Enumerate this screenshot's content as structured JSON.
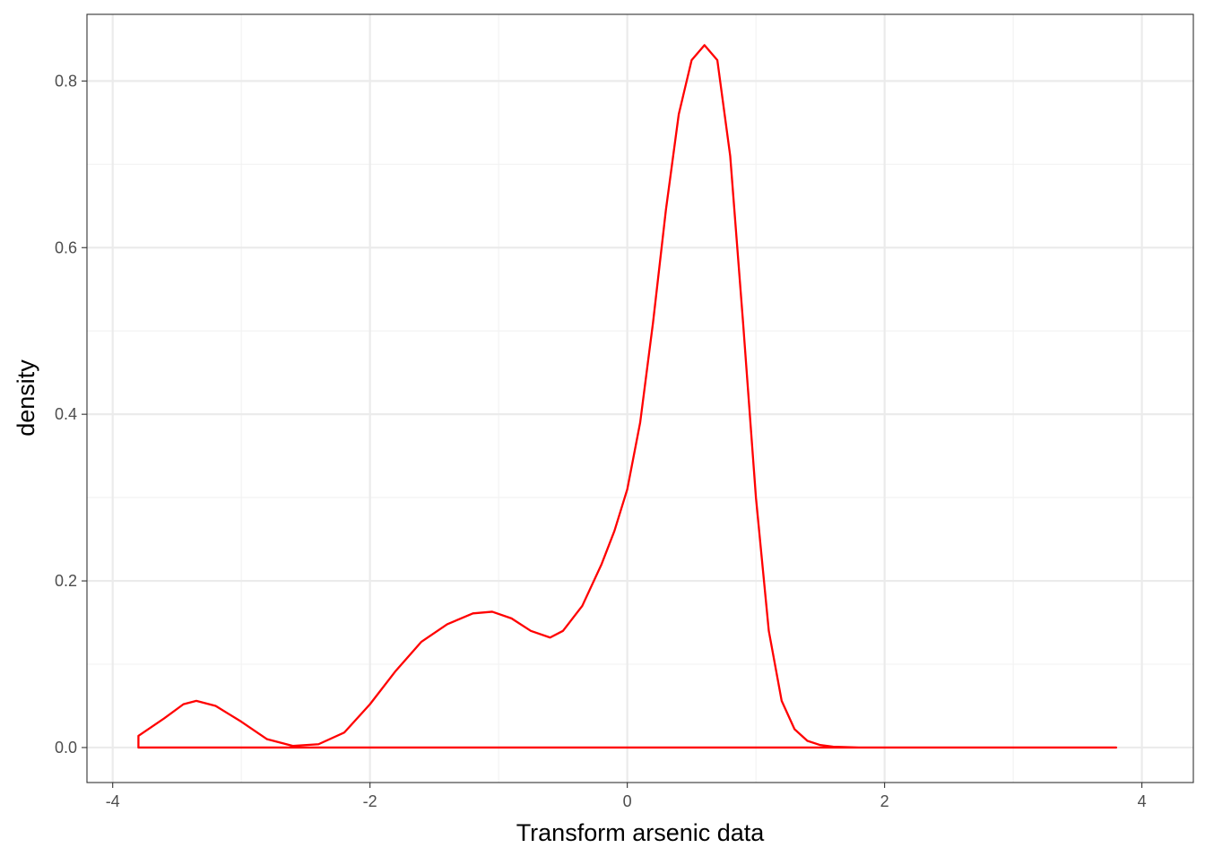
{
  "chart_data": {
    "type": "area",
    "title": "",
    "xlabel": "Transform arsenic data",
    "ylabel": "density",
    "xlim": [
      -4.2,
      4.4
    ],
    "ylim": [
      -0.042,
      0.88
    ],
    "x_ticks": [
      -4,
      -2,
      0,
      2,
      4
    ],
    "x_tick_labels": [
      "-4",
      "-2",
      "0",
      "2",
      "4"
    ],
    "y_ticks": [
      0.0,
      0.2,
      0.4,
      0.6,
      0.8
    ],
    "y_tick_labels": [
      "0.0",
      "0.2",
      "0.4",
      "0.6",
      "0.8"
    ],
    "x_minor_ticks": [
      -3,
      -1,
      1,
      3
    ],
    "y_minor_ticks": [
      0.1,
      0.3,
      0.5,
      0.7
    ],
    "grid": true,
    "theme": "bw",
    "legend": "none",
    "series": [
      {
        "line_color": "#ff0000",
        "fill": "none",
        "x": [
          -3.8,
          -3.6,
          -3.45,
          -3.35,
          -3.2,
          -3.0,
          -2.8,
          -2.6,
          -2.4,
          -2.2,
          -2.0,
          -1.8,
          -1.6,
          -1.4,
          -1.2,
          -1.05,
          -0.9,
          -0.75,
          -0.6,
          -0.5,
          -0.35,
          -0.2,
          -0.1,
          0.0,
          0.1,
          0.2,
          0.3,
          0.4,
          0.5,
          0.6,
          0.7,
          0.8,
          0.9,
          1.0,
          1.1,
          1.2,
          1.3,
          1.4,
          1.5,
          1.6,
          1.8,
          2.0,
          2.5,
          3.0,
          3.5,
          3.8
        ],
        "y": [
          0.014,
          0.035,
          0.052,
          0.056,
          0.05,
          0.031,
          0.01,
          0.002,
          0.004,
          0.018,
          0.052,
          0.092,
          0.127,
          0.148,
          0.161,
          0.163,
          0.155,
          0.14,
          0.132,
          0.14,
          0.17,
          0.22,
          0.26,
          0.31,
          0.39,
          0.51,
          0.645,
          0.76,
          0.825,
          0.843,
          0.825,
          0.71,
          0.51,
          0.3,
          0.14,
          0.056,
          0.022,
          0.008,
          0.003,
          0.001,
          0.0,
          0.0,
          0.0,
          0.0,
          0.0,
          0.0
        ]
      }
    ]
  }
}
